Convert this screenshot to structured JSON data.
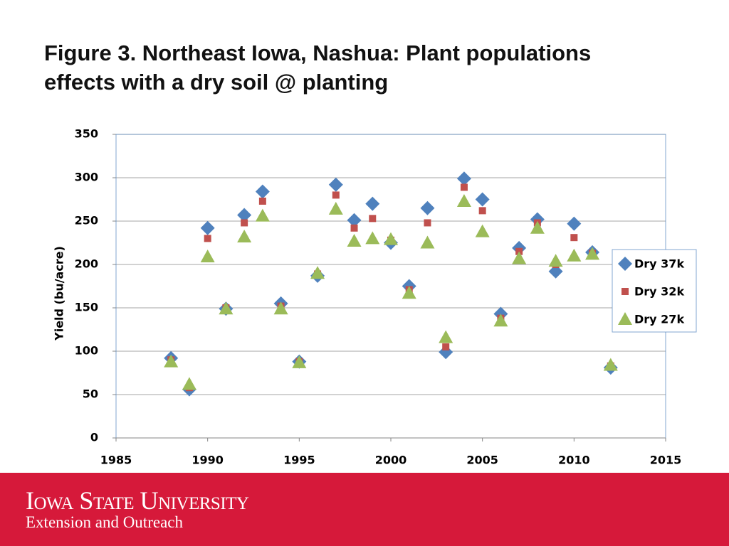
{
  "chart_data": {
    "type": "scatter",
    "title": "Figure 3. Northeast Iowa, Nashua: Plant populations effects with a dry soil @ planting",
    "y_label": "Yield (bu/acre)",
    "x": [
      1988,
      1989,
      1990,
      1991,
      1992,
      1993,
      1994,
      1995,
      1996,
      1997,
      1998,
      1999,
      2000,
      2001,
      2002,
      2003,
      2004,
      2005,
      2006,
      2007,
      2008,
      2009,
      2010,
      2011,
      2012
    ],
    "series": [
      {
        "name": "Dry 37k",
        "color": "#4f81bd",
        "marker": "diamond",
        "values": [
          92,
          56,
          242,
          149,
          257,
          284,
          155,
          88,
          187,
          292,
          251,
          270,
          225,
          175,
          265,
          99,
          299,
          275,
          143,
          219,
          252,
          192,
          247,
          214,
          81
        ]
      },
      {
        "name": "Dry 32k",
        "color": "#c0504d",
        "marker": "square",
        "values": [
          90,
          58,
          230,
          150,
          248,
          273,
          152,
          88,
          189,
          280,
          242,
          253,
          228,
          171,
          248,
          105,
          289,
          262,
          138,
          215,
          248,
          200,
          231,
          213,
          83
        ]
      },
      {
        "name": "Dry 27k",
        "color": "#9bbb59",
        "marker": "triangle",
        "values": [
          88,
          62,
          209,
          149,
          232,
          256,
          149,
          87,
          190,
          264,
          227,
          230,
          229,
          167,
          225,
          116,
          273,
          238,
          135,
          207,
          242,
          204,
          210,
          212,
          84
        ]
      }
    ],
    "xlim": [
      1985,
      2015
    ],
    "xticks": [
      1985,
      1990,
      1995,
      2000,
      2005,
      2010,
      2015
    ],
    "ylim": [
      0,
      350
    ],
    "yticks": [
      0,
      50,
      100,
      150,
      200,
      250,
      300,
      350
    ],
    "grid": true,
    "legend": "right"
  },
  "footer": {
    "name": "Iowa State University",
    "unit": "Extension and Outreach"
  }
}
